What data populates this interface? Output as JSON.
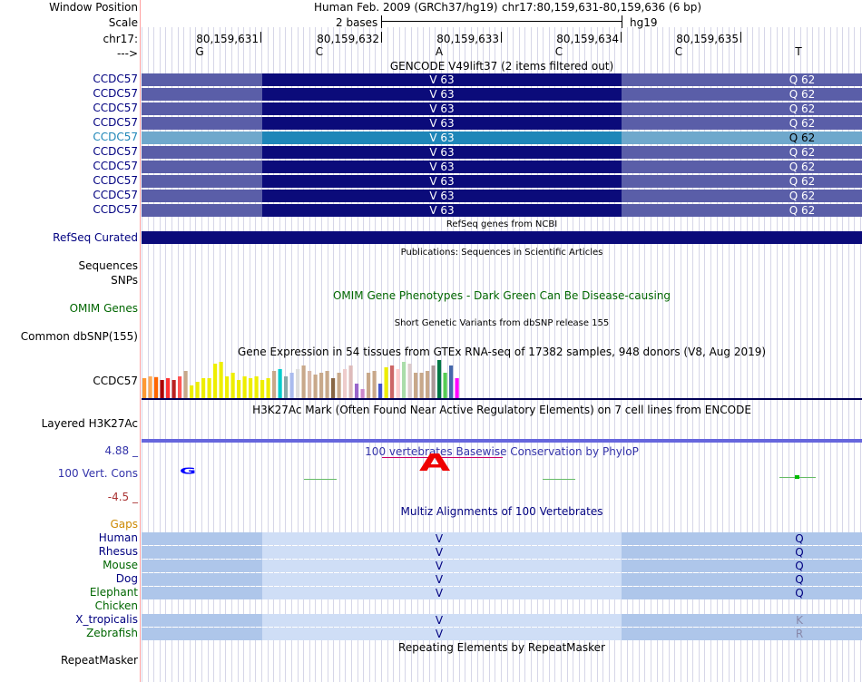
{
  "header": {
    "window_position_label": "Window Position",
    "scale_label": "Scale",
    "chrom_label": "chr17:",
    "strand_label": "--->",
    "assembly": "Human Feb. 2009 (GRCh37/hg19)",
    "position": "chr17:80,159,631-80,159,636 (6 bp)",
    "scale_text": "2 bases",
    "db": "hg19",
    "coords": [
      "80,159,631",
      "80,159,632",
      "80,159,633",
      "80,159,634",
      "80,159,635"
    ],
    "bases": [
      "G",
      "C",
      "A",
      "C",
      "C",
      "T"
    ]
  },
  "gencode": {
    "title": "GENCODE V49lift37 (2 items filtered out)",
    "rows": [
      {
        "label": "CCDC57",
        "mid": "V 63",
        "right": "Q 62",
        "highlight": false
      },
      {
        "label": "CCDC57",
        "mid": "V 63",
        "right": "Q 62",
        "highlight": false
      },
      {
        "label": "CCDC57",
        "mid": "V 63",
        "right": "Q 62",
        "highlight": false
      },
      {
        "label": "CCDC57",
        "mid": "V 63",
        "right": "Q 62",
        "highlight": false
      },
      {
        "label": "CCDC57",
        "mid": "V 63",
        "right": "Q 62",
        "highlight": true
      },
      {
        "label": "CCDC57",
        "mid": "V 63",
        "right": "Q 62",
        "highlight": false
      },
      {
        "label": "CCDC57",
        "mid": "V 63",
        "right": "Q 62",
        "highlight": false
      },
      {
        "label": "CCDC57",
        "mid": "V 63",
        "right": "Q 62",
        "highlight": false
      },
      {
        "label": "CCDC57",
        "mid": "V 63",
        "right": "Q 62",
        "highlight": false
      },
      {
        "label": "CCDC57",
        "mid": "V 63",
        "right": "Q 62",
        "highlight": false
      }
    ]
  },
  "refseq": {
    "title": "RefSeq genes from NCBI",
    "label": "RefSeq Curated"
  },
  "publications": {
    "title": "Publications: Sequences in Scientific Articles",
    "label1": "Sequences",
    "label2": "SNPs"
  },
  "omim": {
    "title": "OMIM Gene Phenotypes - Dark Green Can Be Disease-causing",
    "label": "OMIM Genes"
  },
  "dbsnp": {
    "title": "Short Genetic Variants from dbSNP release 155",
    "label": "Common dbSNP(155)"
  },
  "gtex": {
    "title": "Gene Expression in 54 tissues from GTEx RNA-seq of 17382 samples, 948 donors (V8, Aug 2019)",
    "label": "CCDC57",
    "bars": [
      {
        "value": 0.55,
        "color": "#ff9933"
      },
      {
        "value": 0.6,
        "color": "#ffaa55"
      },
      {
        "value": 0.58,
        "color": "#ff6600"
      },
      {
        "value": 0.5,
        "color": "#aa0000"
      },
      {
        "value": 0.55,
        "color": "#ff3333"
      },
      {
        "value": 0.5,
        "color": "#bb2222"
      },
      {
        "value": 0.6,
        "color": "#ff5555"
      },
      {
        "value": 0.75,
        "color": "#c8a88a"
      },
      {
        "value": 0.35,
        "color": "#eeee00"
      },
      {
        "value": 0.45,
        "color": "#eeee00"
      },
      {
        "value": 0.55,
        "color": "#eeee00"
      },
      {
        "value": 0.55,
        "color": "#eeee00"
      },
      {
        "value": 0.95,
        "color": "#eeee00"
      },
      {
        "value": 1.0,
        "color": "#eeee00"
      },
      {
        "value": 0.6,
        "color": "#eeee00"
      },
      {
        "value": 0.7,
        "color": "#eeee00"
      },
      {
        "value": 0.5,
        "color": "#eeee00"
      },
      {
        "value": 0.6,
        "color": "#eeee00"
      },
      {
        "value": 0.55,
        "color": "#eeee00"
      },
      {
        "value": 0.6,
        "color": "#eeee00"
      },
      {
        "value": 0.5,
        "color": "#eeee00"
      },
      {
        "value": 0.55,
        "color": "#eeee00"
      },
      {
        "value": 0.75,
        "color": "#c8a88a"
      },
      {
        "value": 0.8,
        "color": "#00cccc"
      },
      {
        "value": 0.6,
        "color": "#88aaaa"
      },
      {
        "value": 0.7,
        "color": "#aabbee"
      },
      {
        "value": 0.8,
        "color": "#dddddd"
      },
      {
        "value": 0.9,
        "color": "#c8a88a"
      },
      {
        "value": 0.75,
        "color": "#d8b8a8"
      },
      {
        "value": 0.65,
        "color": "#c8a88a"
      },
      {
        "value": 0.7,
        "color": "#c8a88a"
      },
      {
        "value": 0.75,
        "color": "#c8a88a"
      },
      {
        "value": 0.55,
        "color": "#886644"
      },
      {
        "value": 0.7,
        "color": "#c8a88a"
      },
      {
        "value": 0.8,
        "color": "#eecccc"
      },
      {
        "value": 0.9,
        "color": "#ddbbbb"
      },
      {
        "value": 0.4,
        "color": "#9966cc"
      },
      {
        "value": 0.25,
        "color": "#cc88cc"
      },
      {
        "value": 0.7,
        "color": "#c8a88a"
      },
      {
        "value": 0.75,
        "color": "#c8a88a"
      },
      {
        "value": 0.4,
        "color": "#4455cc"
      },
      {
        "value": 0.85,
        "color": "#eeee00"
      },
      {
        "value": 0.9,
        "color": "#cc6666"
      },
      {
        "value": 0.8,
        "color": "#ffcccc"
      },
      {
        "value": 1.0,
        "color": "#aaddaa"
      },
      {
        "value": 0.95,
        "color": "#ddcccc"
      },
      {
        "value": 0.7,
        "color": "#c8a88a"
      },
      {
        "value": 0.7,
        "color": "#c8a88a"
      },
      {
        "value": 0.75,
        "color": "#c8a88a"
      },
      {
        "value": 0.9,
        "color": "#aa9999"
      },
      {
        "value": 1.05,
        "color": "#007744"
      },
      {
        "value": 0.7,
        "color": "#55cc55"
      },
      {
        "value": 0.9,
        "color": "#4466aa"
      },
      {
        "value": 0.55,
        "color": "#ff00ff"
      }
    ]
  },
  "h3k27ac": {
    "title": "H3K27Ac Mark (Often Found Near Active Regulatory Elements) on 7 cell lines from ENCODE",
    "label": "Layered H3K27Ac"
  },
  "cons": {
    "title": "100 vertebrates Basewise Conservation by PhyloP",
    "label": "100 Vert. Cons",
    "ymax": "4.88 _",
    "ymin": "-4.5 _",
    "logo_g": "G",
    "logo_a": "A"
  },
  "multiz": {
    "title": "Multiz Alignments of 100 Vertebrates",
    "gaps_label": "Gaps",
    "species": [
      {
        "name": "Human",
        "mid": "V",
        "right": "Q",
        "color": "#000080",
        "mid_color": "#000080",
        "right_color": "#000080",
        "shaded": true
      },
      {
        "name": "Rhesus",
        "mid": "V",
        "right": "Q",
        "color": "#000080",
        "mid_color": "#000080",
        "right_color": "#000080",
        "shaded": true
      },
      {
        "name": "Mouse",
        "mid": "V",
        "right": "Q",
        "color": "#006600",
        "mid_color": "#000080",
        "right_color": "#000080",
        "shaded": true
      },
      {
        "name": "Dog",
        "mid": "V",
        "right": "Q",
        "color": "#000080",
        "mid_color": "#000080",
        "right_color": "#000080",
        "shaded": true
      },
      {
        "name": "Elephant",
        "mid": "V",
        "right": "Q",
        "color": "#006600",
        "mid_color": "#000080",
        "right_color": "#000080",
        "shaded": true
      },
      {
        "name": "Chicken",
        "mid": "",
        "right": "",
        "color": "#006600",
        "mid_color": "#000080",
        "right_color": "#000080",
        "shaded": false
      },
      {
        "name": "X_tropicalis",
        "mid": "V",
        "right": "K",
        "color": "#000080",
        "mid_color": "#000080",
        "right_color": "#8888aa",
        "shaded": true
      },
      {
        "name": "Zebrafish",
        "mid": "V",
        "right": "R",
        "color": "#006600",
        "mid_color": "#000080",
        "right_color": "#8888aa",
        "shaded": true
      }
    ]
  },
  "repeat": {
    "title": "Repeating Elements by RepeatMasker",
    "label": "RepeatMasker"
  },
  "colors": {
    "gene_light": "#5a5ea8",
    "gene_dark": "#0b0b7a",
    "gene_hl_light": "#6fa8cc",
    "gene_hl_dark": "#1e86b8",
    "track_label": "#000080",
    "omim_green": "#006600",
    "cons_label": "#3333aa",
    "multiz_light": "#aec6ea",
    "multiz_mid": "#cfdef6",
    "grid": "#d6d6e8"
  }
}
